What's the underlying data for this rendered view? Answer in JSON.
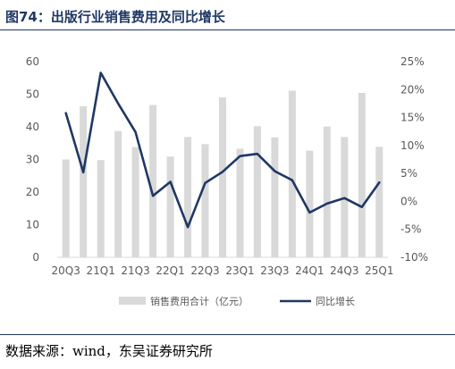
{
  "title": "图74：出版行业销售费用及同比增长",
  "source": "数据来源：wind，东吴证券研究所",
  "colors": {
    "bar": "#d9d9d9",
    "line": "#1f3864",
    "text": "#595959",
    "accent": "#1f3864"
  },
  "chart_data": {
    "type": "bar",
    "categories": [
      "20Q3",
      "20Q4",
      "21Q1",
      "21Q2",
      "21Q3",
      "21Q4",
      "22Q1",
      "22Q2",
      "22Q3",
      "22Q4",
      "23Q1",
      "23Q2",
      "23Q3",
      "23Q4",
      "24Q1",
      "24Q2",
      "24Q3",
      "24Q4",
      "25Q1"
    ],
    "x_tick_labels": [
      "20Q3",
      "21Q1",
      "21Q3",
      "22Q1",
      "22Q3",
      "23Q1",
      "23Q3",
      "24Q1",
      "24Q3",
      "25Q1"
    ],
    "series": [
      {
        "name": "销售费用合计（亿元）",
        "type": "bar",
        "axis": "left",
        "values": [
          30,
          46.3,
          29.8,
          38.7,
          33.8,
          46.7,
          30.9,
          36.9,
          34.7,
          49.1,
          33.3,
          40.2,
          36.8,
          51.1,
          32.7,
          40.1,
          36.9,
          50.4,
          33.9
        ]
      },
      {
        "name": "同比增长",
        "type": "line",
        "axis": "right",
        "values": [
          15.8,
          5.2,
          23.0,
          17.5,
          12.4,
          1.0,
          3.5,
          -4.6,
          3.3,
          5.3,
          8.1,
          8.5,
          5.4,
          3.8,
          -2.0,
          -0.4,
          0.6,
          -1.0,
          3.4
        ]
      }
    ],
    "y_left": {
      "ticks": [
        0,
        10,
        20,
        30,
        40,
        50,
        60
      ],
      "ylim": [
        0,
        60
      ]
    },
    "y_right": {
      "ticks": [
        "25%",
        "20%",
        "15%",
        "10%",
        "5%",
        "0%",
        "-5%",
        "-10%"
      ],
      "ylim": [
        -10,
        25
      ]
    },
    "grid": false,
    "legend_position": "bottom"
  }
}
